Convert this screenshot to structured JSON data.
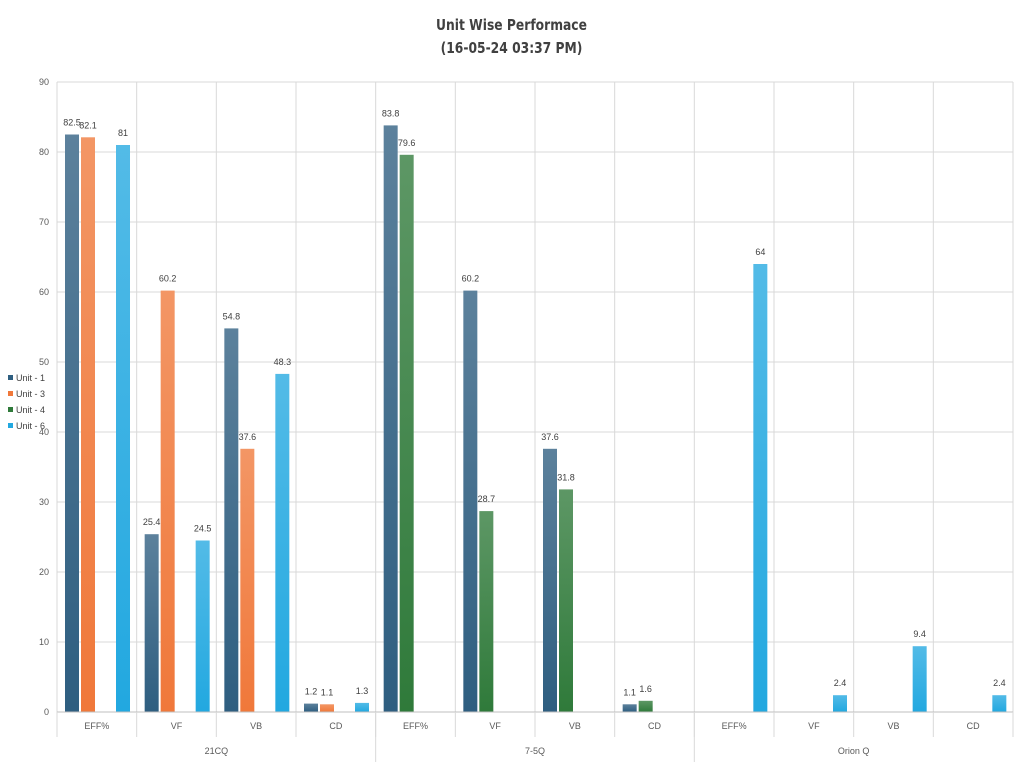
{
  "chart_data": {
    "type": "bar",
    "title": "Unit Wise Performace",
    "subtitle": "(16-05-24 03:37 PM)",
    "xlabel": "",
    "ylabel": "",
    "ylim": [
      0,
      90
    ],
    "yticks": [
      "0",
      "10",
      "20",
      "30",
      "40",
      "50",
      "60",
      "70",
      "80",
      "90"
    ],
    "grid": true,
    "legend_position": "left",
    "groups": [
      {
        "name": "21CQ",
        "categories": [
          "EFF%",
          "VF",
          "VB",
          "CD"
        ]
      },
      {
        "name": "7-5Q",
        "categories": [
          "EFF%",
          "VF",
          "VB",
          "CD"
        ]
      },
      {
        "name": "Orion Q",
        "categories": [
          "EFF%",
          "VF",
          "VB",
          "CD"
        ]
      }
    ],
    "series": [
      {
        "name": "Unit - 1",
        "color": "#2e5e80",
        "values": [
          82.5,
          25.4,
          54.8,
          1.2,
          83.8,
          60.2,
          37.6,
          1.1,
          null,
          null,
          null,
          null
        ],
        "labels": [
          "82.5",
          "25.4",
          "54.8",
          "1.2",
          "83.8",
          "60.2",
          "37.6",
          "1.1",
          "",
          "",
          "",
          ""
        ]
      },
      {
        "name": "Unit - 3",
        "color": "#f0783a",
        "values": [
          82.1,
          60.2,
          37.6,
          1.1,
          null,
          null,
          null,
          null,
          null,
          null,
          null,
          null
        ],
        "labels": [
          "82.1",
          "60.2",
          "37.6",
          "1.1",
          "",
          "",
          "",
          "",
          "",
          "",
          "",
          ""
        ]
      },
      {
        "name": "Unit - 4",
        "color": "#2f7a3a",
        "values": [
          null,
          null,
          null,
          null,
          79.6,
          28.7,
          31.8,
          1.6,
          null,
          null,
          null,
          null
        ],
        "labels": [
          "",
          "",
          "",
          "",
          "79.6",
          "28.7",
          "31.8",
          "1.6",
          "",
          "",
          "",
          ""
        ]
      },
      {
        "name": "Unit - 6",
        "color": "#22a8e0",
        "values": [
          81,
          24.5,
          48.3,
          1.3,
          null,
          null,
          null,
          null,
          64,
          2.4,
          9.4,
          2.4
        ],
        "labels": [
          "81",
          "24.5",
          "48.3",
          "1.3",
          "",
          "",
          "",
          "",
          "64",
          "2.4",
          "9.4",
          "2.4"
        ]
      }
    ]
  }
}
